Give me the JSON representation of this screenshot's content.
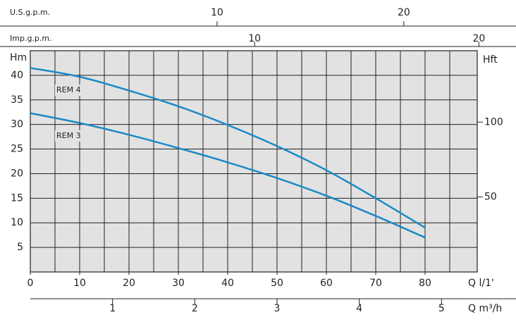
{
  "chart_data": {
    "type": "line",
    "xlabel": "Q  l/1'",
    "ylabel": "Hm",
    "y2label": "Hft",
    "x": [
      0,
      10,
      20,
      30,
      40,
      50,
      60,
      70,
      80
    ],
    "series": [
      {
        "name": "REM 4",
        "color": "#1a8ac6",
        "values": [
          41.5,
          39.7,
          36.9,
          33.7,
          29.9,
          25.6,
          20.7,
          15,
          9
        ]
      },
      {
        "name": "REM 3",
        "color": "#1a8ac6",
        "values": [
          32.3,
          30.3,
          27.9,
          25.2,
          22.3,
          19.1,
          15.5,
          11.4,
          7
        ]
      }
    ],
    "xlim": [
      0,
      90
    ],
    "xticks": [
      0,
      10,
      20,
      30,
      40,
      50,
      60,
      70,
      80
    ],
    "xgrid": [
      5,
      10,
      15,
      20,
      25,
      30,
      35,
      40,
      45,
      50,
      55,
      60,
      65,
      70,
      75,
      80,
      85
    ],
    "ylim": [
      0,
      45
    ],
    "yticks": [
      5,
      10,
      15,
      20,
      25,
      30,
      35,
      40
    ],
    "y2lim": [
      0,
      147.6
    ],
    "y2ticks": [
      50,
      100
    ],
    "top_axes": [
      {
        "label": "U.S.g.p.m.",
        "lim": [
          0,
          23.78
        ],
        "ticks": [
          10,
          20
        ]
      },
      {
        "label": "Imp.g.p.m.",
        "lim": [
          0,
          19.8
        ],
        "ticks": [
          10,
          20
        ]
      }
    ],
    "bottom_axis": {
      "label": "Q  m³/h",
      "lim": [
        0,
        5.4
      ],
      "ticks": [
        1,
        2,
        3,
        4,
        5
      ]
    },
    "grid": true
  }
}
